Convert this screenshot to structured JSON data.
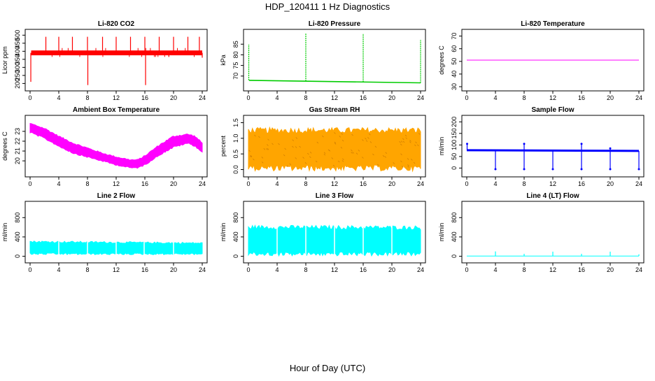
{
  "figure": {
    "title": "HDP_120411  1 Hz Diagnostics",
    "xlabel": "Hour of Day (UTC)"
  },
  "chart_data": [
    {
      "type": "line",
      "title": "Li-820 CO2",
      "ylabel": "Licor ppm",
      "color": "#ff0000",
      "xlim": [
        0,
        24
      ],
      "xticks": [
        0,
        4,
        8,
        12,
        16,
        20,
        24
      ],
      "ylim": [
        180,
        510
      ],
      "yticks": [
        200,
        250,
        300,
        350,
        400,
        450,
        500
      ],
      "baseline": 390,
      "noise": [
        375,
        405
      ],
      "spikes": [
        {
          "x": 0.1,
          "y": 210
        },
        {
          "x": 2.2,
          "y": 490
        },
        {
          "x": 4.0,
          "y": 490
        },
        {
          "x": 5.9,
          "y": 490
        },
        {
          "x": 8.0,
          "y": 490
        },
        {
          "x": 8.05,
          "y": 190
        },
        {
          "x": 10.1,
          "y": 490
        },
        {
          "x": 12.0,
          "y": 490
        },
        {
          "x": 14.0,
          "y": 490
        },
        {
          "x": 16.0,
          "y": 490
        },
        {
          "x": 16.1,
          "y": 190
        },
        {
          "x": 18.0,
          "y": 490
        },
        {
          "x": 20.0,
          "y": 490
        },
        {
          "x": 22.0,
          "y": 490
        },
        {
          "x": 23.6,
          "y": 490
        },
        {
          "x": 24.0,
          "y": 360
        }
      ]
    },
    {
      "type": "line",
      "title": "Li-820 Pressure",
      "ylabel": "kPa",
      "color": "#00cc00",
      "xlim": [
        0,
        24
      ],
      "xticks": [
        0,
        4,
        8,
        12,
        16,
        20,
        24
      ],
      "ylim": [
        65,
        90
      ],
      "yticks": [
        70,
        75,
        80,
        85
      ],
      "series": [
        {
          "x": [
            0.1,
            24
          ],
          "y": [
            68.0,
            66.8
          ]
        }
      ],
      "spikes": [
        {
          "x": 0.05,
          "y": 85
        },
        {
          "x": 8.0,
          "y": 90
        },
        {
          "x": 16.0,
          "y": 90
        },
        {
          "x": 24.0,
          "y": 87
        }
      ]
    },
    {
      "type": "line",
      "title": "Li-820 Temperature",
      "ylabel": "degrees C",
      "color": "#ff00ff",
      "xlim": [
        0,
        24
      ],
      "xticks": [
        0,
        4,
        8,
        12,
        16,
        20,
        24
      ],
      "ylim": [
        30,
        72
      ],
      "yticks": [
        30,
        40,
        50,
        60,
        70
      ],
      "series": [
        {
          "x": [
            0,
            24
          ],
          "y": [
            51,
            51
          ]
        }
      ]
    },
    {
      "type": "area",
      "title": "Ambient Box Temperature",
      "ylabel": "degrees C",
      "color": "#ff00ff",
      "xlim": [
        0,
        24
      ],
      "xticks": [
        0,
        4,
        8,
        12,
        16,
        20,
        24
      ],
      "ylim": [
        18.8,
        24.2
      ],
      "yticks": [
        20,
        21,
        22,
        23
      ],
      "x": [
        0,
        2,
        4,
        6,
        8,
        10,
        12,
        14,
        15,
        16,
        18,
        20,
        22,
        23,
        24
      ],
      "y_low": [
        22.9,
        22.3,
        21.5,
        20.8,
        20.4,
        20.0,
        19.6,
        19.3,
        19.3,
        19.6,
        20.6,
        21.4,
        21.8,
        21.5,
        20.9
      ],
      "y_high": [
        23.8,
        23.3,
        22.5,
        21.8,
        21.3,
        20.8,
        20.4,
        20.1,
        20.1,
        20.5,
        21.6,
        22.5,
        22.7,
        22.5,
        21.8
      ]
    },
    {
      "type": "area",
      "title": "Gas Stream RH",
      "ylabel": "percent",
      "color": "#ffa500",
      "xlim": [
        0,
        24
      ],
      "xticks": [
        0,
        4,
        8,
        12,
        16,
        20,
        24
      ],
      "ylim": [
        -0.1,
        1.6
      ],
      "yticks": [
        0.0,
        0.5,
        1.0,
        1.5
      ],
      "ytick_format": "1dp",
      "x": [
        0,
        24
      ],
      "y_low": [
        0.05,
        0.05
      ],
      "y_high": [
        1.25,
        1.25
      ]
    },
    {
      "type": "line",
      "title": "Sample Flow",
      "ylabel": "ml/min",
      "color": "#0000ff",
      "xlim": [
        0,
        24
      ],
      "xticks": [
        0,
        4,
        8,
        12,
        16,
        20,
        24
      ],
      "ylim": [
        -20,
        210
      ],
      "yticks": [
        0,
        50,
        100,
        150,
        200
      ],
      "series": [
        {
          "x": [
            0,
            24
          ],
          "y": [
            77,
            74
          ]
        }
      ],
      "spikes": [
        {
          "x": 0.05,
          "y": 105
        },
        {
          "x": 4.0,
          "y": -5
        },
        {
          "x": 8.0,
          "y": 105
        },
        {
          "x": 8.0,
          "y": -5
        },
        {
          "x": 12.0,
          "y": -5
        },
        {
          "x": 16.0,
          "y": 105
        },
        {
          "x": 16.0,
          "y": -5
        },
        {
          "x": 20.0,
          "y": 85
        },
        {
          "x": 20.0,
          "y": -5
        },
        {
          "x": 24.0,
          "y": -5
        }
      ]
    },
    {
      "type": "area",
      "title": "Line 2 Flow",
      "ylabel": "ml/min",
      "color": "#00ffff",
      "xlim": [
        0,
        24
      ],
      "xticks": [
        0,
        4,
        8,
        12,
        16,
        20,
        24
      ],
      "ylim": [
        -50,
        1050
      ],
      "yticks": [
        0,
        400,
        800
      ],
      "x": [
        0,
        24
      ],
      "y_low": [
        50,
        50
      ],
      "y_high": [
        300,
        270
      ],
      "gaps": [
        4,
        8,
        12,
        15.9,
        20
      ]
    },
    {
      "type": "area",
      "title": "Line 3 Flow",
      "ylabel": "ml/min",
      "color": "#00ffff",
      "xlim": [
        0,
        24
      ],
      "xticks": [
        0,
        4,
        8,
        12,
        16,
        20,
        24
      ],
      "ylim": [
        -50,
        1050
      ],
      "yticks": [
        0,
        400,
        800
      ],
      "x": [
        0,
        24
      ],
      "y_low": [
        50,
        50
      ],
      "y_high": [
        600,
        590
      ],
      "gaps": [
        4,
        8,
        12,
        16,
        20
      ]
    },
    {
      "type": "line",
      "title": "Line 4 (LT) Flow",
      "ylabel": "ml/min",
      "color": "#00ffff",
      "xlim": [
        0,
        24
      ],
      "xticks": [
        0,
        4,
        8,
        12,
        16,
        20,
        24
      ],
      "ylim": [
        -50,
        1050
      ],
      "yticks": [
        0,
        400,
        800
      ],
      "series": [
        {
          "x": [
            0,
            24
          ],
          "y": [
            5,
            5
          ]
        }
      ],
      "spikes": [
        {
          "x": 4.0,
          "y": 100
        },
        {
          "x": 8.0,
          "y": 50
        },
        {
          "x": 12.0,
          "y": 95
        },
        {
          "x": 16.0,
          "y": 50
        },
        {
          "x": 20.0,
          "y": 95
        },
        {
          "x": 24.0,
          "y": 40
        }
      ]
    }
  ]
}
